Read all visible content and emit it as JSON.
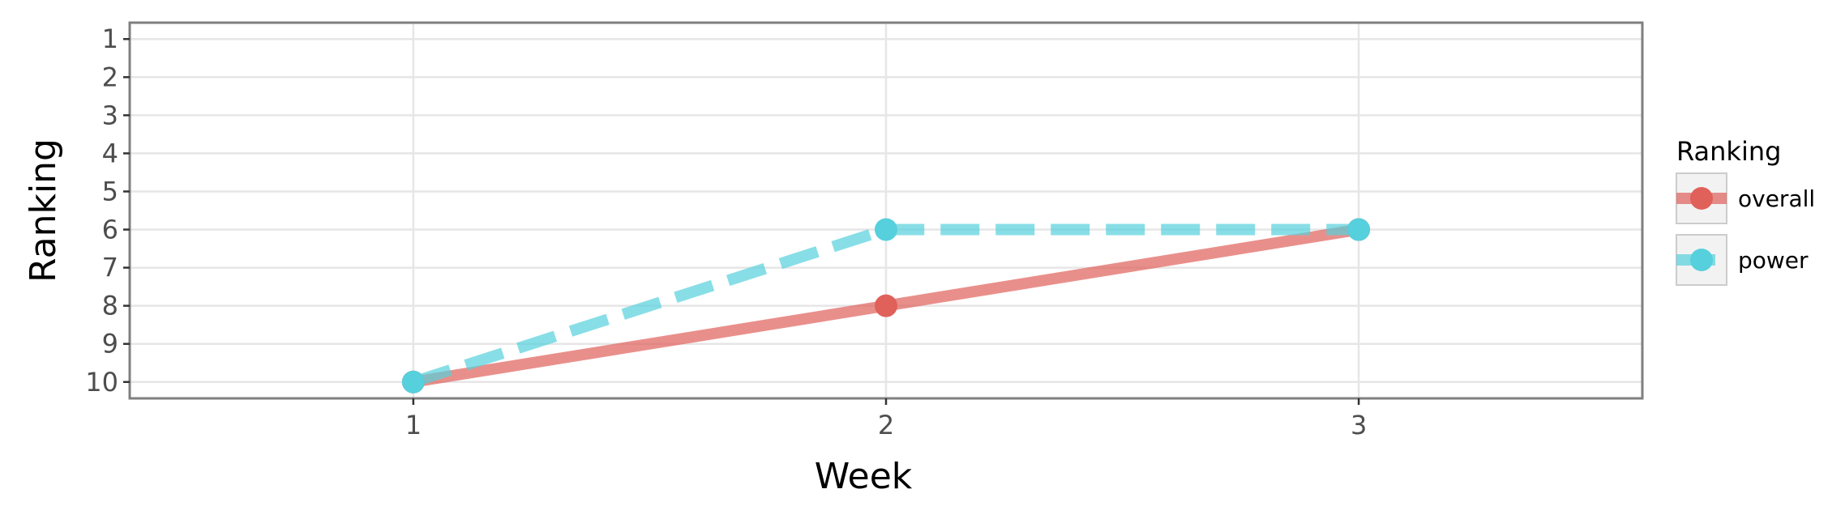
{
  "chart_data": {
    "type": "line",
    "xlabel": "Week",
    "ylabel": "Ranking",
    "x": [
      1,
      2,
      3
    ],
    "xlim": [
      0.4,
      3.6
    ],
    "ylim": [
      10.43,
      0.57
    ],
    "y_reversed": true,
    "x_ticks": [
      "1",
      "2",
      "3"
    ],
    "y_ticks": [
      "1",
      "2",
      "3",
      "4",
      "5",
      "6",
      "7",
      "8",
      "9",
      "10"
    ],
    "grid": true,
    "legend": {
      "title": "Ranking",
      "position": "right"
    },
    "series": [
      {
        "name": "overall",
        "values": [
          10,
          8,
          6
        ],
        "color": "#e0605a",
        "line": "solid"
      },
      {
        "name": "power",
        "values": [
          10,
          6,
          6
        ],
        "color": "#55d0dc",
        "line": "dashed"
      }
    ]
  }
}
